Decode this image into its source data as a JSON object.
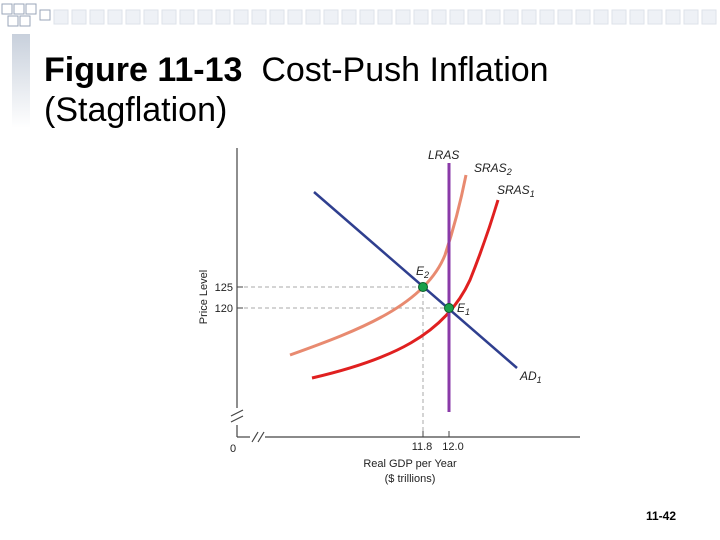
{
  "slide": {
    "title_prefix": "Figure 11-13",
    "title_rest": "Cost-Push Inflation",
    "title_line2": "(Stagflation)",
    "slide_number": "11-42"
  },
  "colors": {
    "ad": "#2f3f8f",
    "lras": "#8a3aa8",
    "sras1": "#e02020",
    "sras2": "#e88a70",
    "point": "#1aa04a",
    "guide": "#aaaaaa"
  },
  "diagram": {
    "y_axis_label": "Price Level",
    "x_axis_label_line1": "Real GDP per Year",
    "x_axis_label_line2": "($ trillions)",
    "origin_label": "0",
    "y_ticks": [
      "125",
      "120"
    ],
    "x_ticks": [
      "11.8",
      "12.0"
    ],
    "curves": {
      "lras": "LRAS",
      "sras2_main": "SRAS",
      "sras2_sub": "2",
      "sras1_main": "SRAS",
      "sras1_sub": "1",
      "ad_main": "AD",
      "ad_sub": "1"
    },
    "points": {
      "e2_main": "E",
      "e2_sub": "2",
      "e1_main": "E",
      "e1_sub": "1"
    }
  }
}
